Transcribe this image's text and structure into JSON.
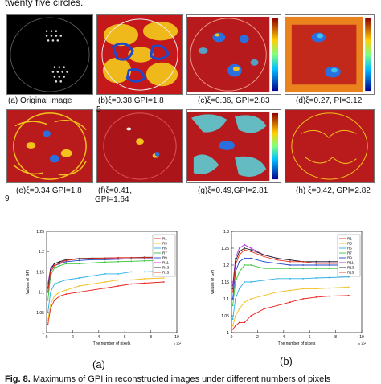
{
  "top_caption": "twenty five circles.",
  "panels": [
    {
      "id": "a",
      "caption": "(a) Original image",
      "side_label": "5"
    },
    {
      "id": "b",
      "caption": "(b)ξ=0.38,GPI=1.8",
      "side_label": ""
    },
    {
      "id": "c",
      "caption": "(c)ξ=0.36, GPI=2.83",
      "side_label": ""
    },
    {
      "id": "d",
      "caption": "(d)ξ=0.27, PI=3.12",
      "side_label": ""
    },
    {
      "id": "e",
      "caption": "(e)ξ=0.34,GPI=1.8",
      "side_label": "9"
    },
    {
      "id": "f",
      "caption": "(f)ξ=0.41,",
      "caption2": "GPI=1.64",
      "side_label": ""
    },
    {
      "id": "g",
      "caption": "(g)ξ=0.49,GPI=2.81",
      "side_label": ""
    },
    {
      "id": "h",
      "caption": "(h) ξ=0.42, GPI=2.82",
      "side_label": ""
    }
  ],
  "plot_labels": {
    "a": "(a)",
    "b": "(b)"
  },
  "fig_caption": {
    "number": "Fig. 8.",
    "text": "Maximums of GPI in reconstructed images under different numbers of pixels"
  },
  "chart_data": [
    {
      "type": "line",
      "title": "",
      "xlabel": "The number of pixels",
      "ylabel": "Values of GPI",
      "x_multiplier": "x 10⁴",
      "xlim": [
        0,
        10
      ],
      "ylim": [
        1.0,
        1.25
      ],
      "yticks": [
        "1",
        "1.05",
        "1.1",
        "1.15",
        "1.2",
        "1.25"
      ],
      "xticks": [
        "0",
        "2",
        "4",
        "6",
        "8",
        "10"
      ],
      "legend_position": "top-right",
      "x": [
        0.1,
        0.3,
        0.6,
        1.0,
        1.5,
        2.5,
        3.5,
        4.5,
        5.5,
        6.5,
        7.5,
        9.0
      ],
      "series": [
        {
          "name": "R1",
          "color": "#e8201c",
          "values": [
            1.02,
            1.06,
            1.08,
            1.09,
            1.095,
            1.1,
            1.105,
            1.11,
            1.115,
            1.12,
            1.122,
            1.125
          ]
        },
        {
          "name": "R3",
          "color": "#f0c020",
          "values": [
            1.03,
            1.07,
            1.09,
            1.1,
            1.105,
            1.115,
            1.12,
            1.125,
            1.13,
            1.13,
            1.133,
            1.135
          ]
        },
        {
          "name": "R5",
          "color": "#2ab0e6",
          "values": [
            1.05,
            1.1,
            1.12,
            1.125,
            1.13,
            1.135,
            1.14,
            1.145,
            1.145,
            1.15,
            1.15,
            1.152
          ]
        },
        {
          "name": "R7",
          "color": "#34c534",
          "values": [
            1.08,
            1.14,
            1.16,
            1.165,
            1.17,
            1.17,
            1.172,
            1.174,
            1.175,
            1.176,
            1.177,
            1.178
          ]
        },
        {
          "name": "R9",
          "color": "#1f49c9",
          "values": [
            1.1,
            1.15,
            1.165,
            1.17,
            1.175,
            1.178,
            1.18,
            1.18,
            1.181,
            1.182,
            1.182,
            1.183
          ]
        },
        {
          "name": "R11",
          "color": "#b530d6",
          "values": [
            1.12,
            1.16,
            1.17,
            1.175,
            1.18,
            1.182,
            1.183,
            1.183,
            1.184,
            1.185,
            1.185,
            1.185
          ]
        },
        {
          "name": "R13",
          "color": "#222222",
          "values": [
            1.11,
            1.155,
            1.17,
            1.175,
            1.18,
            1.183,
            1.184,
            1.184,
            1.185,
            1.185,
            1.186,
            1.186
          ]
        },
        {
          "name": "R15",
          "color": "#e8341c",
          "values": [
            1.1,
            1.15,
            1.165,
            1.172,
            1.178,
            1.182,
            1.183,
            1.184,
            1.185,
            1.185,
            1.185,
            1.186
          ]
        }
      ]
    },
    {
      "type": "line",
      "title": "",
      "xlabel": "The number of pixels",
      "ylabel": "Values of GPI",
      "x_multiplier": "x 10⁴",
      "xlim": [
        0,
        10
      ],
      "ylim": [
        1.0,
        1.3
      ],
      "yticks": [
        "1",
        "1.05",
        "1.1",
        "1.15",
        "1.2",
        "1.25",
        "1.3"
      ],
      "xticks": [
        "0",
        "2",
        "4",
        "6",
        "8",
        "10"
      ],
      "legend_position": "top-right",
      "x": [
        0.1,
        0.3,
        0.6,
        1.0,
        1.5,
        2.5,
        3.5,
        4.5,
        5.5,
        6.5,
        7.5,
        9.0
      ],
      "series": [
        {
          "name": "R1",
          "color": "#e8201c",
          "values": [
            1.01,
            1.02,
            1.03,
            1.03,
            1.05,
            1.07,
            1.08,
            1.09,
            1.1,
            1.105,
            1.108,
            1.11
          ]
        },
        {
          "name": "R3",
          "color": "#f0c020",
          "values": [
            1.02,
            1.05,
            1.07,
            1.09,
            1.1,
            1.11,
            1.12,
            1.125,
            1.13,
            1.13,
            1.132,
            1.135
          ]
        },
        {
          "name": "R5",
          "color": "#2ab0e6",
          "values": [
            1.04,
            1.1,
            1.13,
            1.15,
            1.15,
            1.155,
            1.16,
            1.16,
            1.16,
            1.162,
            1.163,
            1.165
          ]
        },
        {
          "name": "R7",
          "color": "#34c534",
          "values": [
            1.08,
            1.15,
            1.18,
            1.2,
            1.2,
            1.19,
            1.19,
            1.19,
            1.19,
            1.19,
            1.19,
            1.19
          ]
        },
        {
          "name": "R9",
          "color": "#1f49c9",
          "values": [
            1.1,
            1.18,
            1.21,
            1.22,
            1.22,
            1.21,
            1.205,
            1.2,
            1.2,
            1.2,
            1.2,
            1.2
          ]
        },
        {
          "name": "R11",
          "color": "#b530d6",
          "values": [
            1.14,
            1.22,
            1.25,
            1.26,
            1.25,
            1.23,
            1.22,
            1.215,
            1.21,
            1.21,
            1.21,
            1.21
          ]
        },
        {
          "name": "R13",
          "color": "#222222",
          "values": [
            1.13,
            1.21,
            1.24,
            1.25,
            1.245,
            1.23,
            1.22,
            1.215,
            1.21,
            1.21,
            1.21,
            1.21
          ]
        },
        {
          "name": "R15",
          "color": "#e8341c",
          "values": [
            1.12,
            1.2,
            1.23,
            1.245,
            1.24,
            1.225,
            1.215,
            1.21,
            1.21,
            1.205,
            1.205,
            1.205
          ]
        }
      ]
    }
  ]
}
